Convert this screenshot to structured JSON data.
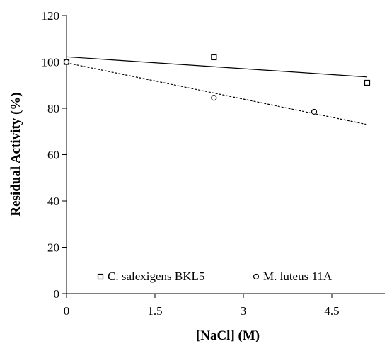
{
  "chart_data": {
    "type": "scatter",
    "title": "",
    "xlabel": "[NaCl] (M)",
    "ylabel": "Residual Activity (%)",
    "xlim": [
      0,
      5.4
    ],
    "ylim": [
      0,
      120
    ],
    "x_ticks": [
      0,
      1.5,
      3,
      4.5
    ],
    "x_tick_labels": [
      "0",
      "1.5",
      "3",
      "4.5"
    ],
    "y_ticks": [
      0,
      20,
      40,
      60,
      80,
      100,
      120
    ],
    "y_tick_labels": [
      "0",
      "20",
      "40",
      "60",
      "80",
      "100",
      "120"
    ],
    "grid": false,
    "legend": "bottom-inside",
    "series": [
      {
        "name": "C. salexigens BKL5",
        "marker": "square",
        "color": "#000000",
        "x": [
          0,
          2.5,
          5.1
        ],
        "y": [
          100,
          102,
          91
        ],
        "trendline": {
          "style": "solid",
          "from": [
            0,
            102.2
          ],
          "to": [
            5.1,
            93.5
          ]
        }
      },
      {
        "name": "M. luteus 11A",
        "marker": "circle",
        "color": "#000000",
        "x": [
          0,
          2.5,
          4.2
        ],
        "y": [
          100,
          84.5,
          78.5
        ],
        "trendline": {
          "style": "dashed",
          "from": [
            0,
            99.6
          ],
          "to": [
            5.1,
            73
          ]
        }
      }
    ]
  }
}
